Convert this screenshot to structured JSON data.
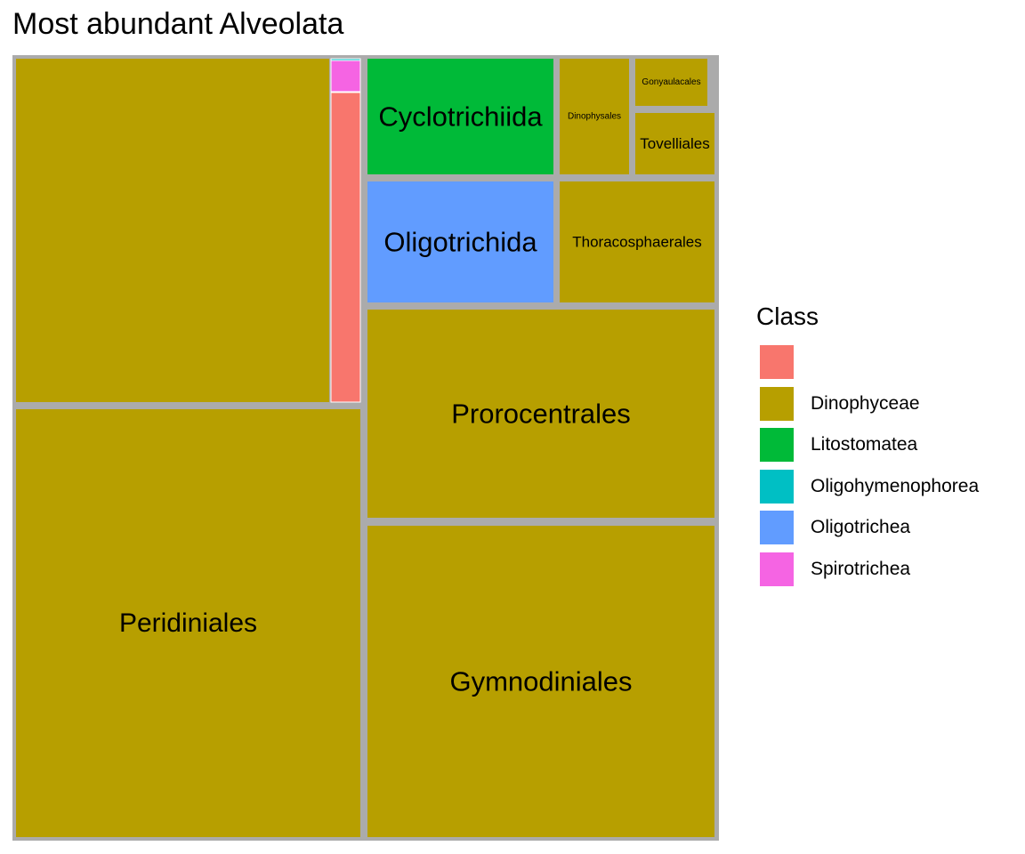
{
  "chart_data": {
    "type": "treemap",
    "title": "Most abundant Alveolata",
    "legend": {
      "title": "Class",
      "placement": "right",
      "entries": [
        {
          "label": "",
          "color": "#F8766D"
        },
        {
          "label": "Dinophyceae",
          "color": "#B79F00"
        },
        {
          "label": "Litostomatea",
          "color": "#00BA38"
        },
        {
          "label": "Oligohymenophorea",
          "color": "#00BFC4"
        },
        {
          "label": "Oligotrichea",
          "color": "#619CFF"
        },
        {
          "label": "Spirotrichea",
          "color": "#F564E3"
        }
      ]
    },
    "tiles": [
      {
        "label": "",
        "class": "Dinophyceae",
        "value": 136.3
      },
      {
        "label": "",
        "class": "",
        "value": 10.9
      },
      {
        "label": "",
        "class": "Spirotrichea",
        "value": 1.1
      },
      {
        "label": "",
        "class": "Oligohymenophorea",
        "value": 0.1
      },
      {
        "label": "Peridiniales",
        "class": "Dinophyceae",
        "value": 170.2
      },
      {
        "label": "Cyclotrichiida",
        "class": "Litostomatea",
        "value": 27.5
      },
      {
        "label": "Dinophysales",
        "class": "Dinophyceae",
        "value": 10.2
      },
      {
        "label": "Gonyaulacales",
        "class": "Dinophyceae",
        "value": 4.0
      },
      {
        "label": "Tovelliales",
        "class": "Dinophyceae",
        "value": 6.2
      },
      {
        "label": "Oligotrichida",
        "class": "Oligotrichea",
        "value": 28.8
      },
      {
        "label": "Thoracosphaerales",
        "class": "Dinophyceae",
        "value": 23.7
      },
      {
        "label": "Prorocentrales",
        "class": "Dinophyceae",
        "value": 91.7
      },
      {
        "label": "Gymnodiniales",
        "class": "Dinophyceae",
        "value": 138.7
      }
    ]
  }
}
